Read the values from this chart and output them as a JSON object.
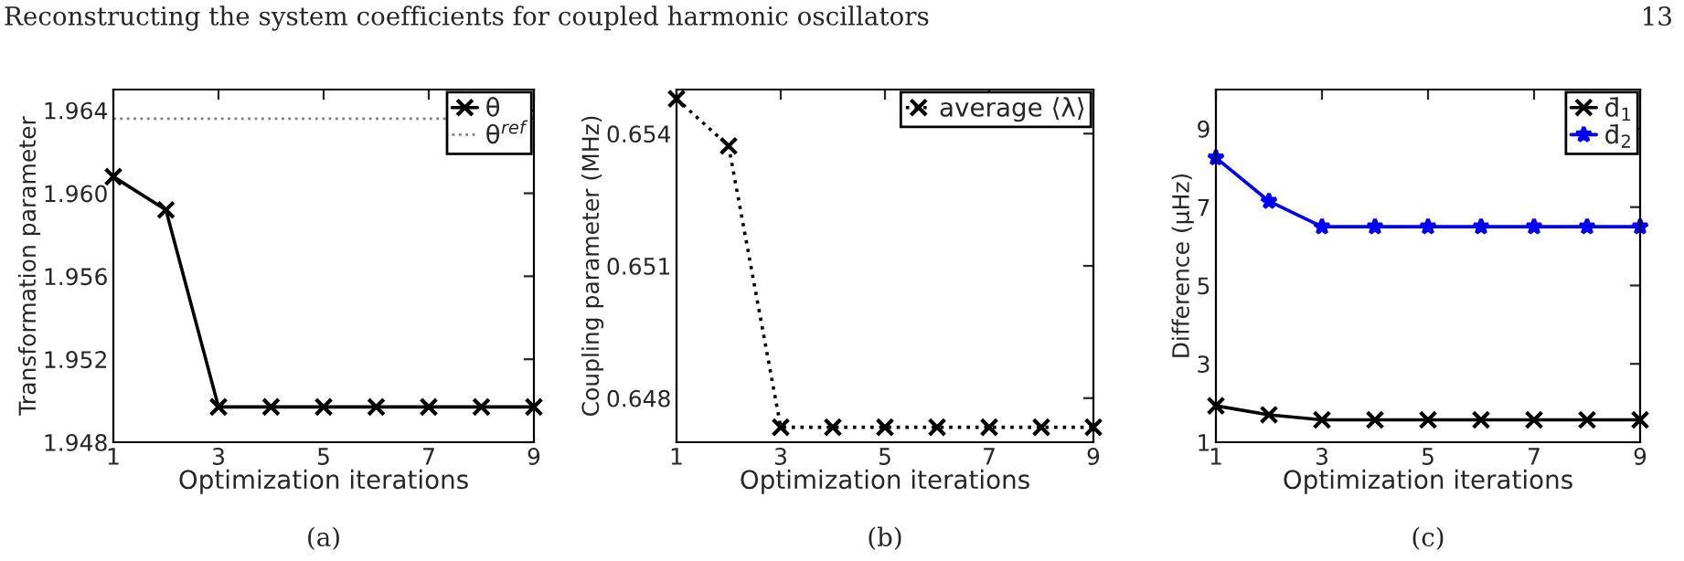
{
  "chart_data": [
    {
      "type": "line",
      "xlabel": "Optimization iterations",
      "ylabel": "Transformation parameter",
      "x": [
        1,
        2,
        3,
        4,
        5,
        6,
        7,
        8,
        9
      ],
      "series": [
        {
          "name": "θ",
          "color": "#000000",
          "values": [
            1.9608,
            1.9592,
            1.9497,
            1.9497,
            1.9497,
            1.9497,
            1.9497,
            1.9497,
            1.9497
          ],
          "marker": "cross",
          "line_style": "solid"
        }
      ],
      "ref_lines": [
        {
          "axis": "y",
          "value": 1.9636,
          "label": "θ$^{ref}$",
          "color": "#808080",
          "line_style": "dotted"
        }
      ],
      "xlim": [
        1,
        9
      ],
      "xticks": [
        1,
        3,
        5,
        7,
        9
      ],
      "ylim": [
        1.948,
        1.965
      ],
      "yticks": [
        1.948,
        1.952,
        1.956,
        {
          "value": 1.96,
          "label": "1.960"
        },
        1.964
      ],
      "grid": false,
      "legend": "top right",
      "annotations": [
        "Reconstructing the system coefficients for coupled harmonic oscillators",
        "13",
        "(a)"
      ]
    },
    {
      "type": "line",
      "xlabel": "Optimization iterations",
      "ylabel": "Coupling parameter (MHz)",
      "x": [
        1,
        2,
        3,
        4,
        5,
        6,
        7,
        8,
        9
      ],
      "series": [
        {
          "name": "average ⟨λ⟩",
          "color": "#000000",
          "values": [
            0.65479,
            0.65372,
            0.64734,
            0.64734,
            0.64734,
            0.64734,
            0.64734,
            0.64734,
            0.64734
          ],
          "marker": "cross",
          "line_style": "dotted"
        }
      ],
      "xlim": [
        1,
        9
      ],
      "xticks": [
        1,
        3,
        5,
        7,
        9
      ],
      "ylim": [
        0.647,
        0.655
      ],
      "yticks": [
        0.648,
        0.651,
        0.654
      ],
      "grid": false,
      "legend": "top right",
      "annotations": [
        "(b)"
      ]
    },
    {
      "type": "line",
      "xlabel": "Optimization iterations",
      "ylabel": "Difference (μHz)",
      "x": [
        1,
        2,
        3,
        4,
        5,
        6,
        7,
        8,
        9
      ],
      "series": [
        {
          "name": "d̄$_{1}$",
          "color": "#000000",
          "values": [
            1.93,
            1.7,
            1.57,
            1.57,
            1.57,
            1.57,
            1.57,
            1.57,
            1.57
          ],
          "marker": "cross",
          "line_style": "solid"
        },
        {
          "name": "d̄$_{2}$",
          "color": "#0000ff",
          "values": [
            8.26,
            7.15,
            6.5,
            6.5,
            6.5,
            6.5,
            6.5,
            6.5,
            6.5
          ],
          "marker": "star",
          "line_style": "solid"
        }
      ],
      "xlim": [
        1,
        9
      ],
      "xticks": [
        1,
        3,
        5,
        7,
        9
      ],
      "ylim": [
        1,
        10
      ],
      "yticks": [
        1,
        3,
        5,
        7,
        9
      ],
      "grid": false,
      "legend": "top right",
      "annotations": [
        "(c)"
      ]
    }
  ]
}
